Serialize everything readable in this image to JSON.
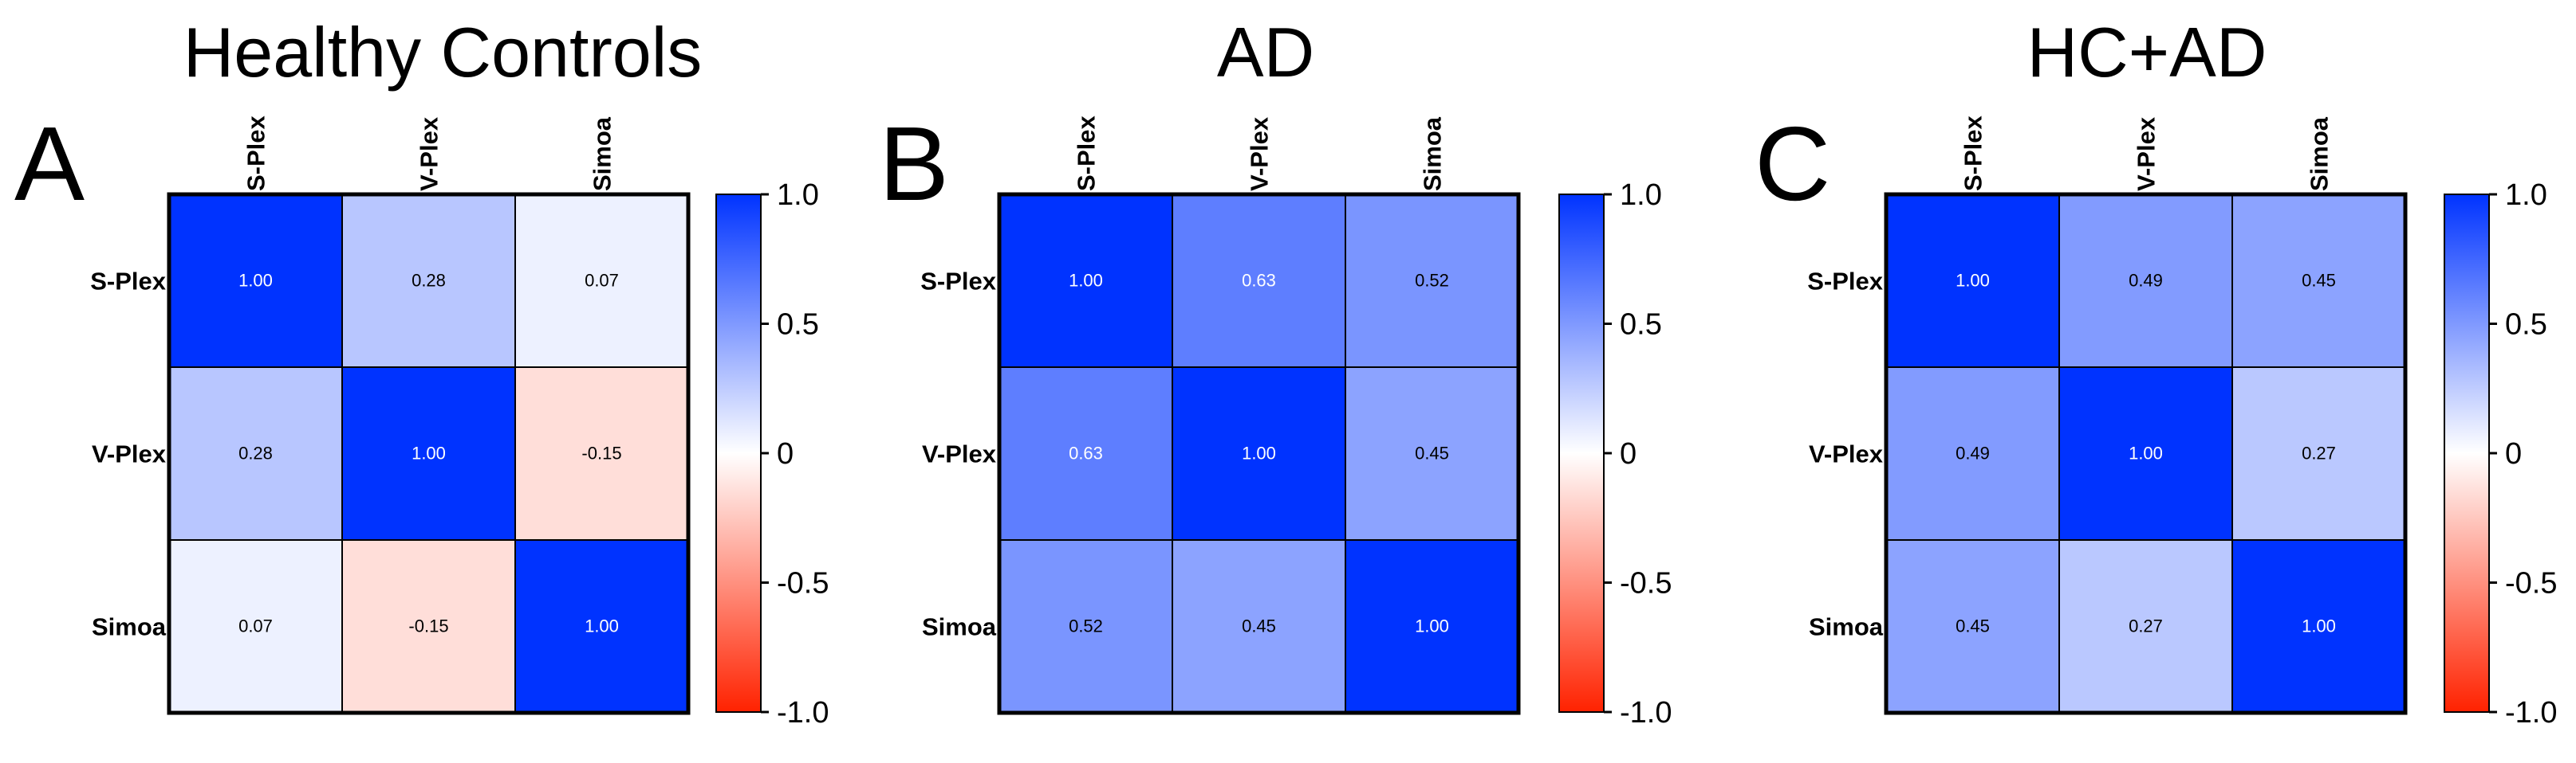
{
  "chart_data": [
    {
      "type": "heatmap",
      "panel_letter": "A",
      "title": "Healthy Controls",
      "row_labels": [
        "S-Plex",
        "V-Plex",
        "Simoa"
      ],
      "col_labels": [
        "S-Plex",
        "V-Plex",
        "Simoa"
      ],
      "values": [
        [
          1.0,
          0.28,
          0.07
        ],
        [
          0.28,
          1.0,
          -0.15
        ],
        [
          0.07,
          -0.15,
          1.0
        ]
      ],
      "value_labels": [
        [
          "1.00",
          "0.28",
          "0.07"
        ],
        [
          "0.28",
          "1.00",
          "-0.15"
        ],
        [
          "0.07",
          "-0.15",
          "1.00"
        ]
      ],
      "colorbar": {
        "range": [
          -1.0,
          1.0
        ],
        "tick_labels": [
          "1.0",
          "0.5",
          "0",
          "-0.5",
          "-1.0"
        ]
      }
    },
    {
      "type": "heatmap",
      "panel_letter": "B",
      "title": "AD",
      "row_labels": [
        "S-Plex",
        "V-Plex",
        "Simoa"
      ],
      "col_labels": [
        "S-Plex",
        "V-Plex",
        "Simoa"
      ],
      "values": [
        [
          1.0,
          0.63,
          0.52
        ],
        [
          0.63,
          1.0,
          0.45
        ],
        [
          0.52,
          0.45,
          1.0
        ]
      ],
      "value_labels": [
        [
          "1.00",
          "0.63",
          "0.52"
        ],
        [
          "0.63",
          "1.00",
          "0.45"
        ],
        [
          "0.52",
          "0.45",
          "1.00"
        ]
      ],
      "colorbar": {
        "range": [
          -1.0,
          1.0
        ],
        "tick_labels": [
          "1.0",
          "0.5",
          "0",
          "-0.5",
          "-1.0"
        ]
      }
    },
    {
      "type": "heatmap",
      "panel_letter": "C",
      "title": "HC+AD",
      "row_labels": [
        "S-Plex",
        "V-Plex",
        "Simoa"
      ],
      "col_labels": [
        "S-Plex",
        "V-Plex",
        "Simoa"
      ],
      "values": [
        [
          1.0,
          0.49,
          0.45
        ],
        [
          0.49,
          1.0,
          0.27
        ],
        [
          0.45,
          0.27,
          1.0
        ]
      ],
      "value_labels": [
        [
          "1.00",
          "0.49",
          "0.45"
        ],
        [
          "0.49",
          "1.00",
          "0.27"
        ],
        [
          "0.45",
          "0.27",
          "1.00"
        ]
      ],
      "colorbar": {
        "range": [
          -1.0,
          1.0
        ],
        "tick_labels": [
          "1.0",
          "0.5",
          "0",
          "-0.5",
          "-1.0"
        ]
      }
    }
  ],
  "colors": {
    "positive": "#0033ff",
    "neutral": "#ffffff",
    "negative": "#ff2200",
    "text": "#000000",
    "text_on_dark": "#ffffff"
  }
}
